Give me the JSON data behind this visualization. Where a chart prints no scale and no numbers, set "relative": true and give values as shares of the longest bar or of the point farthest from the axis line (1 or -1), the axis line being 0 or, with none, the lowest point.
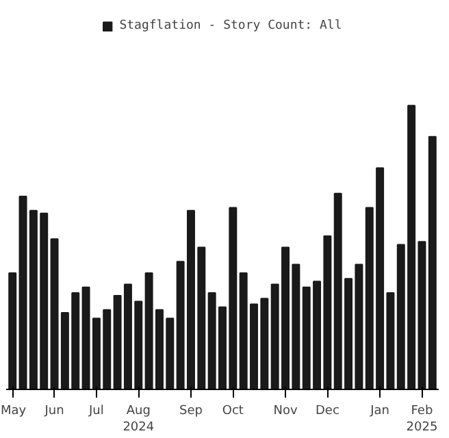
{
  "chart_data": {
    "type": "bar",
    "relative": true,
    "legend": "top",
    "categories": [
      "May",
      null,
      null,
      null,
      "Jun",
      null,
      null,
      null,
      "Jul",
      null,
      null,
      null,
      "Aug\n2024",
      null,
      null,
      null,
      null,
      "Sep",
      null,
      null,
      null,
      "Oct",
      null,
      null,
      null,
      null,
      "Nov",
      null,
      null,
      null,
      "Dec",
      null,
      null,
      null,
      null,
      "Jan",
      null,
      null,
      null,
      "Feb\n2025",
      null
    ],
    "series": [
      {
        "name": "Stagflation - Story Count: All",
        "color": "#1a1a1a",
        "values": [
          0.41,
          0.68,
          0.63,
          0.62,
          0.53,
          0.27,
          0.34,
          0.36,
          0.25,
          0.28,
          0.33,
          0.37,
          0.31,
          0.41,
          0.28,
          0.25,
          0.45,
          0.63,
          0.5,
          0.34,
          0.29,
          0.64,
          0.41,
          0.3,
          0.32,
          0.37,
          0.5,
          0.44,
          0.36,
          0.38,
          0.54,
          0.69,
          0.39,
          0.44,
          0.64,
          0.78,
          0.34,
          0.51,
          1,
          0.52,
          0.89
        ]
      }
    ]
  }
}
